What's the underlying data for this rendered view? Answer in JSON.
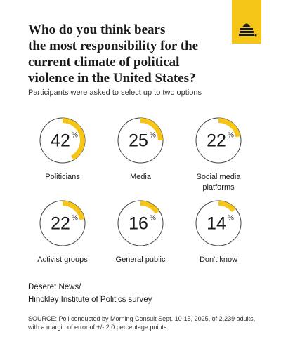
{
  "chart_data": {
    "type": "donut",
    "title": [
      "Who do you think bears",
      "the most responsibility for the",
      "current climate of political",
      "violence in the United States?"
    ],
    "subtitle": "Participants were asked to select up to two options",
    "unit": "%",
    "categories": [
      "Politicians",
      "Media",
      "Social media platforms",
      "Activist groups",
      "General public",
      "Don't know"
    ],
    "values": [
      42,
      25,
      22,
      22,
      16,
      14
    ],
    "color": "#f5c518"
  },
  "credit": [
    "Deseret News/",
    "Hinckley Institute of Politics survey"
  ],
  "source": [
    "SOURCE: Poll conducted by Morning Consult Sept. 10-15, 2025, of 2,239 adults,",
    "with a margin of error of +/- 2.0 percentage points."
  ]
}
